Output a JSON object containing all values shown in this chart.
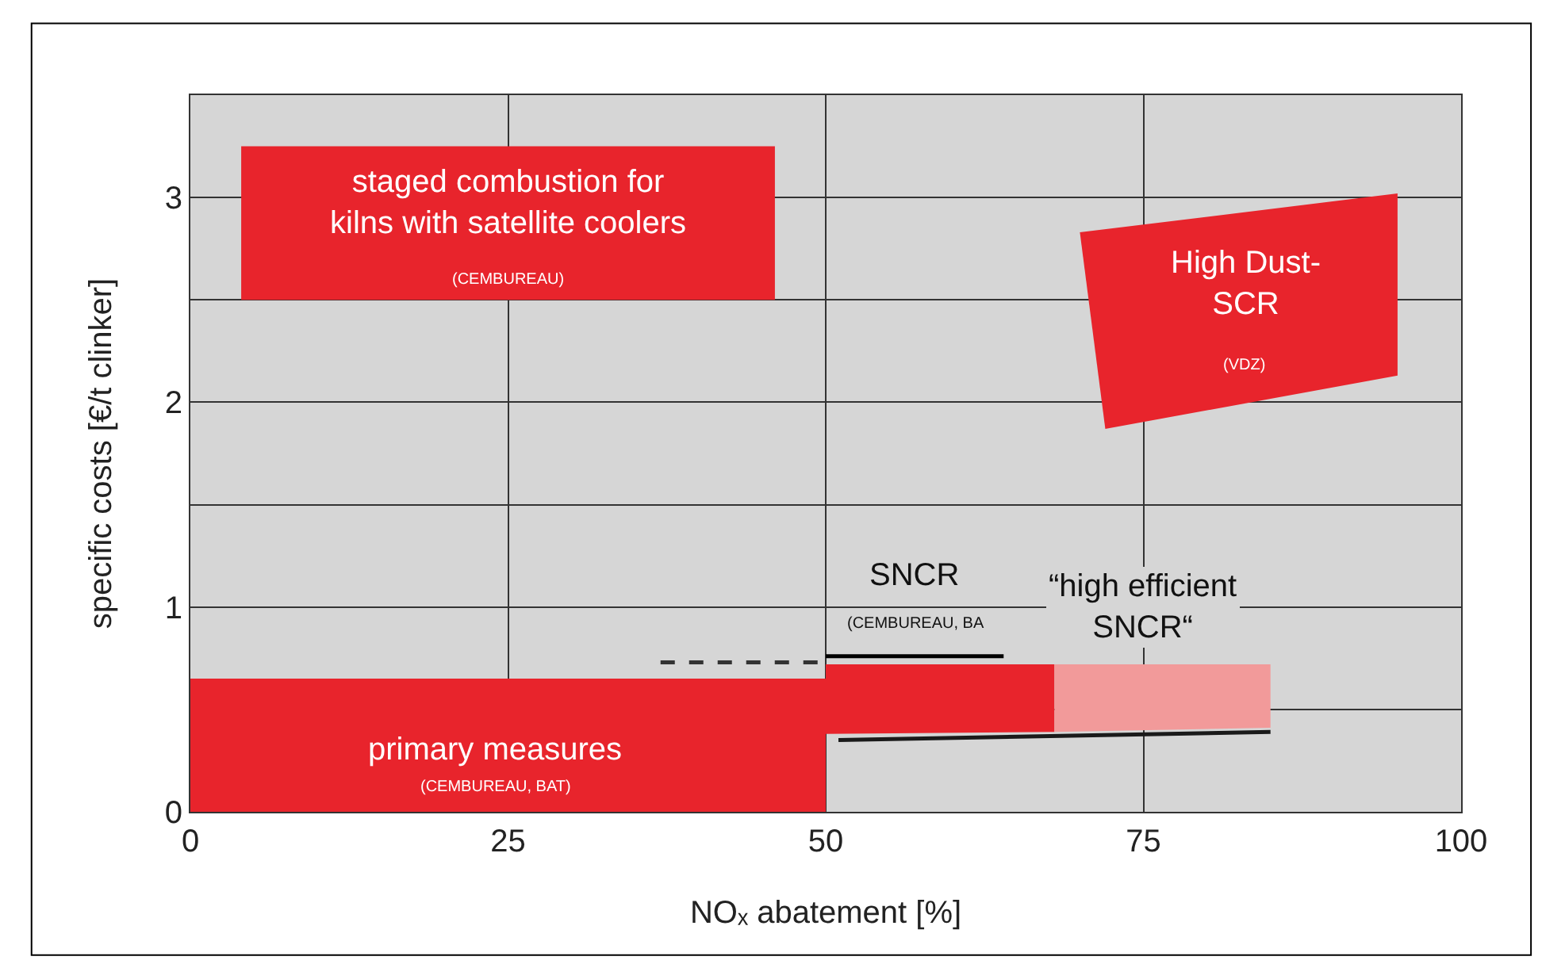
{
  "chart_data": {
    "type": "area",
    "xlabel": "NOₓ abatement [%]",
    "ylabel": "specific costs [€/t clinker]",
    "xlim": [
      0,
      100
    ],
    "xticks": [
      0,
      25,
      50,
      75,
      100
    ],
    "ylim": [
      0,
      3.5
    ],
    "yticks": [
      0,
      {
        "value": 0.5,
        "label": null
      },
      1,
      {
        "value": 1.5,
        "label": null
      },
      2,
      {
        "value": 2.5,
        "label": null
      },
      3
    ],
    "grid": true,
    "series": [
      {
        "color": "#e8242c",
        "x": [
          4,
          46,
          46,
          4,
          4
        ],
        "values": [
          2.5,
          2.5,
          3.25,
          3.25,
          2.5
        ]
      },
      {
        "color": "#e8242c",
        "x": [
          70,
          95,
          95,
          72,
          70
        ],
        "values": [
          2.83,
          3.02,
          2.13,
          1.87,
          2.83
        ]
      },
      {
        "color": "#e8242c",
        "x": [
          0,
          50,
          50,
          0,
          0
        ],
        "values": [
          0,
          0,
          0.65,
          0.65,
          0
        ]
      },
      {
        "color": "#e8242c",
        "x": [
          50,
          68,
          68,
          50,
          50
        ],
        "values": [
          0.72,
          0.72,
          0.39,
          0.38,
          0.72
        ]
      },
      {
        "color": "#f29a9a",
        "x": [
          68,
          85,
          85,
          68,
          68
        ],
        "values": [
          0.72,
          0.72,
          0.41,
          0.39,
          0.72
        ]
      },
      {
        "type": "line",
        "color": "#333333",
        "line_style": "dashed",
        "x": [
          37,
          50
        ],
        "values": [
          0.73,
          0.73
        ]
      },
      {
        "type": "line",
        "color": "#000000",
        "line_style": "solid",
        "x": [
          50,
          64
        ],
        "values": [
          0.76,
          0.76
        ]
      },
      {
        "type": "line",
        "color": "#1a1a1a",
        "line_style": "solid",
        "x": [
          51,
          85
        ],
        "values": [
          0.35,
          0.39
        ]
      }
    ],
    "annotations": [
      "staged combustion for\nkilns with satellite coolers",
      "(CEMBUREAU)",
      "High Dust-\nSCR",
      "(VDZ)",
      "primary measures",
      "(CEMBUREAU, BAT)",
      "SNCR",
      "(CEMBUREAU, BA",
      "“high efficient\nSNCR“"
    ]
  }
}
